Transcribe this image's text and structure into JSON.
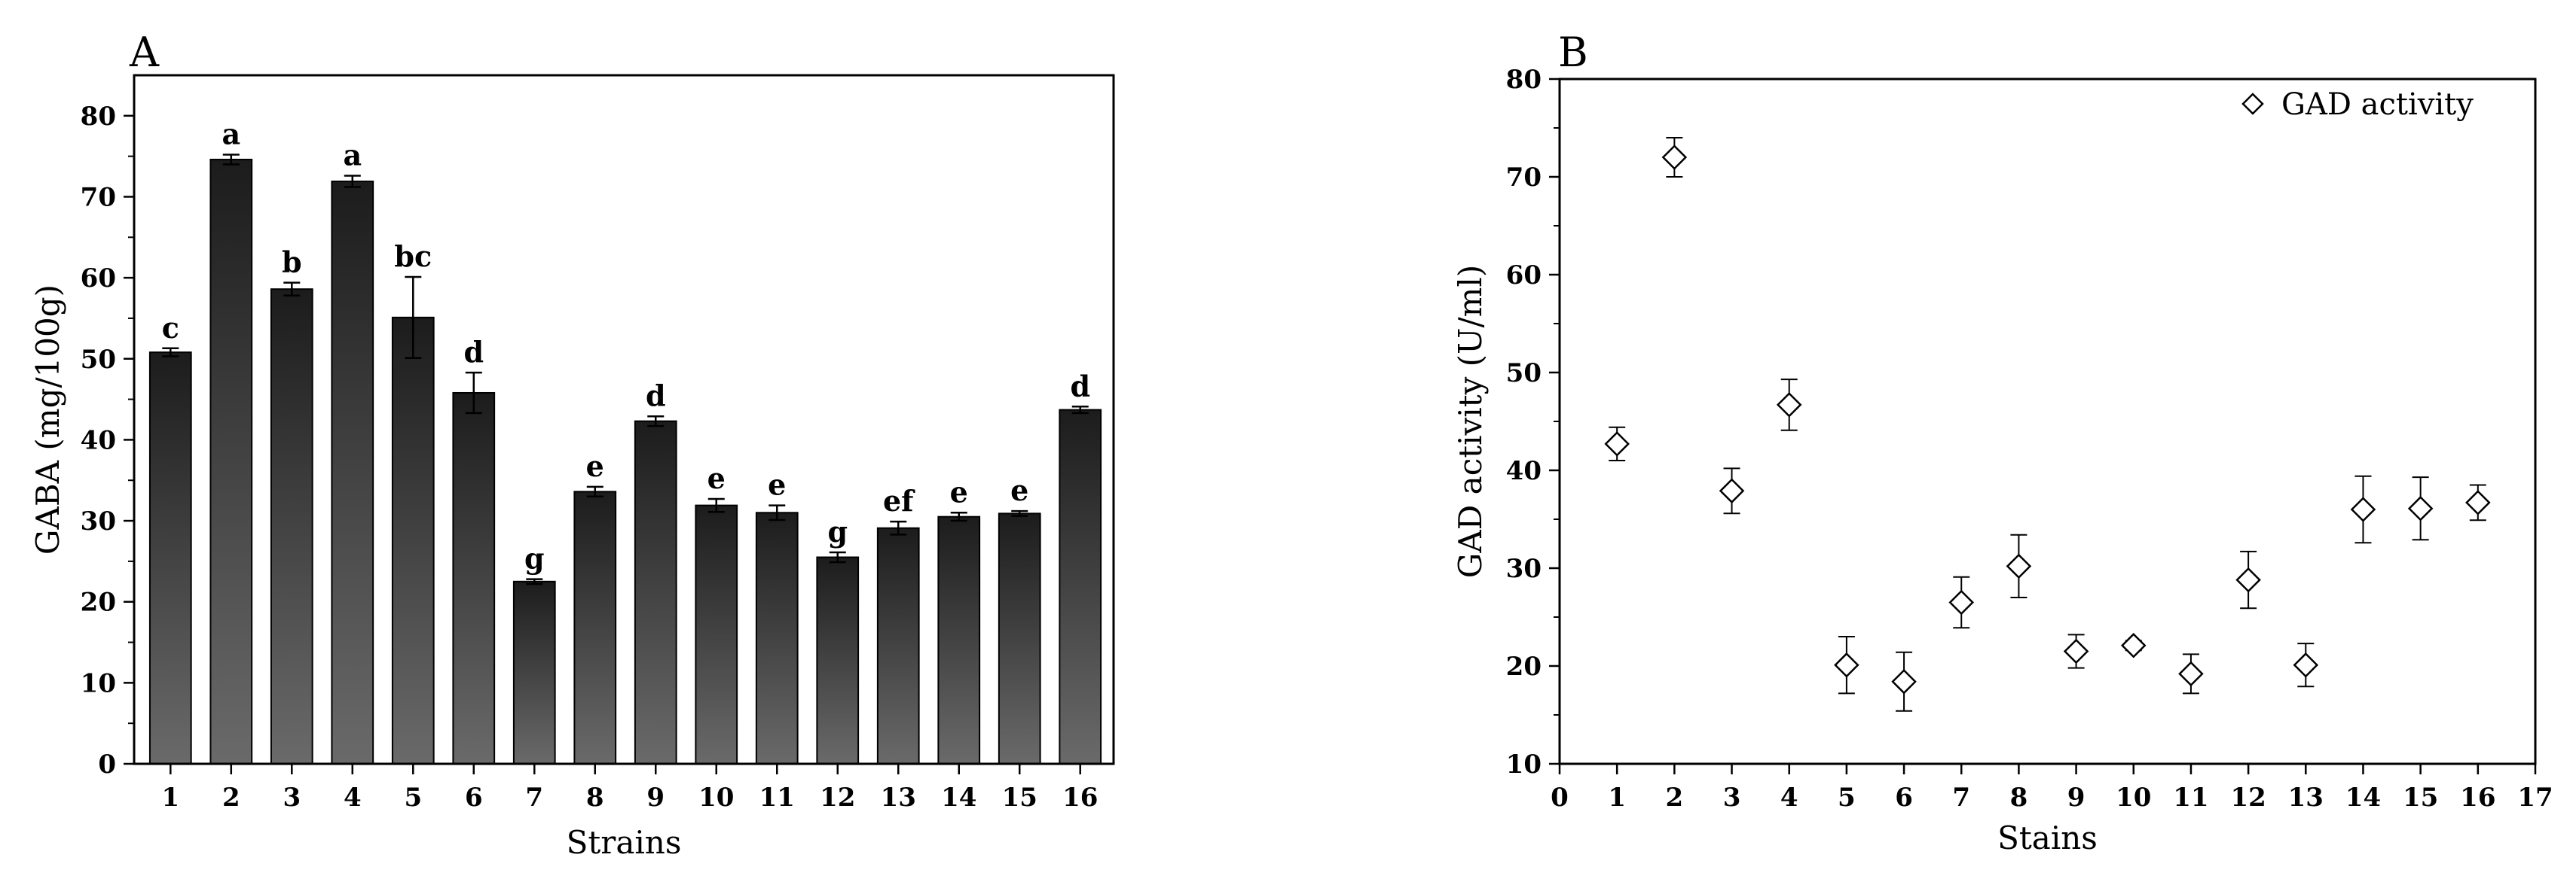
{
  "chart_data": [
    {
      "type": "bar",
      "panel_label": "A",
      "xlabel": "Strains",
      "ylabel": "GABA (mg/100g)",
      "ylim": [
        0,
        85
      ],
      "yticks": [
        0,
        10,
        20,
        30,
        40,
        50,
        60,
        70,
        80
      ],
      "categories": [
        "1",
        "2",
        "3",
        "4",
        "5",
        "6",
        "7",
        "8",
        "9",
        "10",
        "11",
        "12",
        "13",
        "14",
        "15",
        "16"
      ],
      "values": [
        50.8,
        74.6,
        58.6,
        71.9,
        55.1,
        45.8,
        22.5,
        33.6,
        42.3,
        31.9,
        31.0,
        25.5,
        29.1,
        30.5,
        30.9,
        43.7
      ],
      "errors": [
        0.5,
        0.6,
        0.8,
        0.7,
        5.0,
        2.5,
        0.3,
        0.6,
        0.6,
        0.8,
        0.9,
        0.6,
        0.8,
        0.5,
        0.3,
        0.4
      ],
      "significance": [
        "c",
        "a",
        "b",
        "a",
        "bc",
        "d",
        "g",
        "e",
        "d",
        "e",
        "e",
        "g",
        "ef",
        "e",
        "e",
        "d"
      ],
      "grid": false,
      "bar_color_top": "#1c1c1c",
      "bar_color_bottom": "#6a6a6a"
    },
    {
      "type": "scatter",
      "panel_label": "B",
      "xlabel": "Stains",
      "ylabel": "GAD activity (U/ml)",
      "xlim": [
        0,
        17
      ],
      "ylim": [
        10,
        80
      ],
      "xticks": [
        0,
        1,
        2,
        3,
        4,
        5,
        6,
        7,
        8,
        9,
        10,
        11,
        12,
        13,
        14,
        15,
        16,
        17
      ],
      "yticks": [
        10,
        20,
        30,
        40,
        50,
        60,
        70,
        80
      ],
      "series": [
        {
          "name": "GAD activity",
          "marker": "diamond-open",
          "x": [
            1,
            2,
            3,
            4,
            5,
            6,
            7,
            8,
            9,
            10,
            11,
            12,
            13,
            14,
            15,
            16
          ],
          "y": [
            42.7,
            72.0,
            37.9,
            46.7,
            20.1,
            18.4,
            26.5,
            30.2,
            21.5,
            22.1,
            19.2,
            28.8,
            20.1,
            36.0,
            36.1,
            36.7
          ],
          "errors": [
            1.7,
            2.0,
            2.3,
            2.6,
            2.9,
            3.0,
            2.6,
            3.2,
            1.7,
            0.5,
            2.0,
            2.9,
            2.2,
            3.4,
            3.2,
            1.8
          ]
        }
      ],
      "legend_position": "top-right",
      "grid": false
    }
  ]
}
